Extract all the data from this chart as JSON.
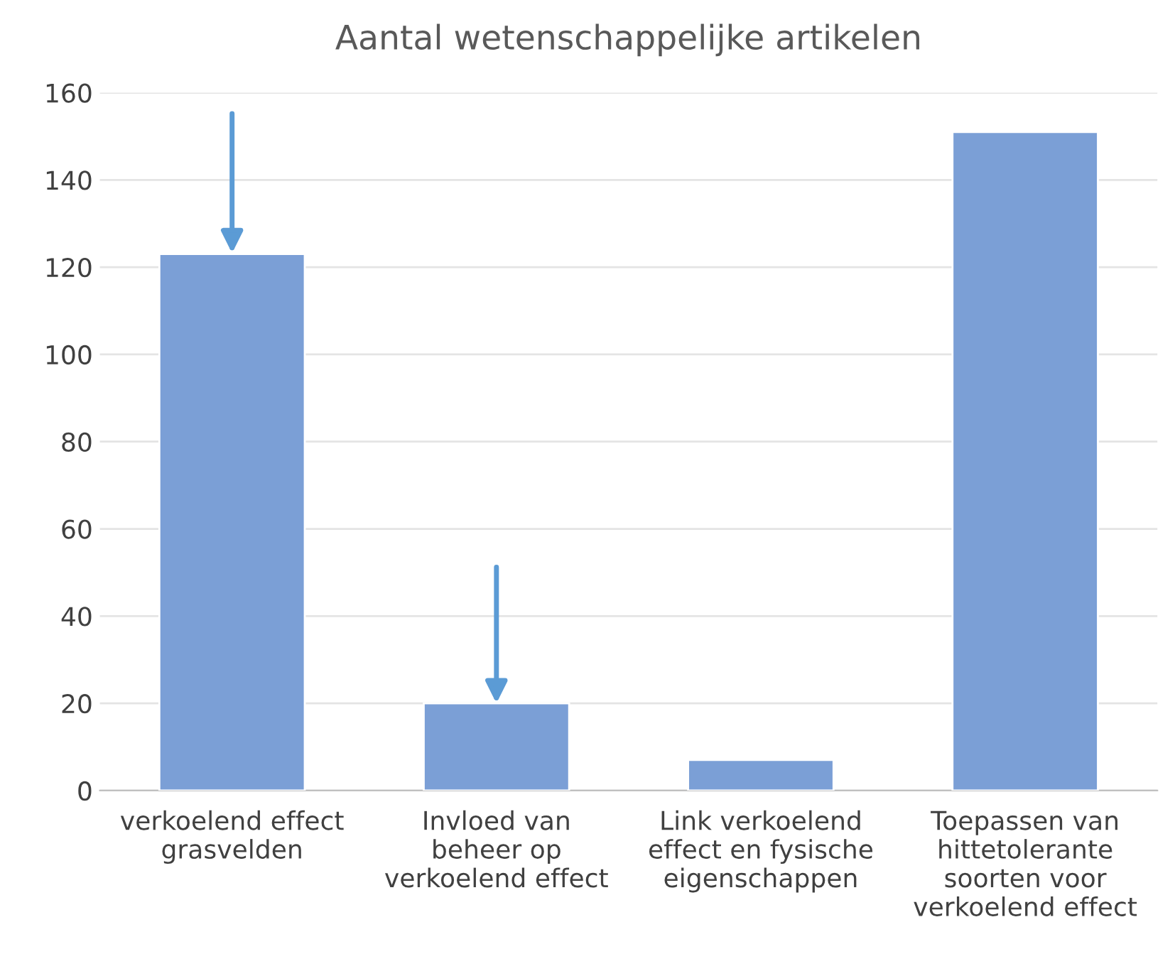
{
  "chart_data": {
    "type": "bar",
    "title": "Aantal wetenschappelijke artikelen",
    "categories": [
      "verkoelend effect\ngrasvelden",
      "Invloed van\nbeheer op\nverkoelend effect",
      "Link verkoelend\neffect en fysische\neigenschappen",
      "Toepassen van\nhittetolerante\nsoorten voor\nverkoelend effect"
    ],
    "values": [
      123,
      20,
      7,
      151
    ],
    "color": "#7b9fd6",
    "ylim": [
      0,
      160
    ],
    "yticks": [
      0,
      20,
      40,
      60,
      80,
      100,
      120,
      140,
      160
    ],
    "grid": "y"
  }
}
